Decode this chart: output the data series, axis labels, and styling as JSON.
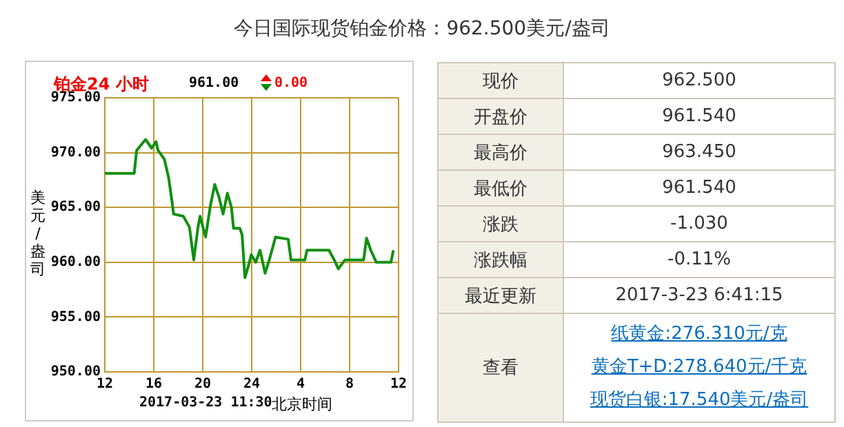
{
  "chart_data": [
    {
      "type": "line",
      "title": "今日国际现货铂金价格：962.500美元/盎司",
      "subtitle": "铂金24 小时",
      "xlabel": "北京时间",
      "ylabel": "美元/盎司",
      "annotations": [
        "961.00",
        "0.00",
        "2017-03-23 11:30"
      ],
      "x": [
        "2017-03-22T12:00",
        "2017-03-22T14:24",
        "2017-03-22T14:36",
        "2017-03-22T15:20",
        "2017-03-22T15:50",
        "2017-03-22T16:11",
        "2017-03-22T16:21",
        "2017-03-22T16:52",
        "2017-03-22T17:13",
        "2017-03-22T17:29",
        "2017-03-22T17:37",
        "2017-03-22T18:25",
        "2017-03-22T18:55",
        "2017-03-22T19:16",
        "2017-03-22T19:37",
        "2017-03-22T19:47",
        "2017-03-22T20:14",
        "2017-03-22T20:38",
        "2017-03-22T20:59",
        "2017-03-22T21:19",
        "2017-03-22T21:40",
        "2017-03-22T22:01",
        "2017-03-22T22:21",
        "2017-03-22T22:31",
        "2017-03-22T23:02",
        "2017-03-22T23:13",
        "2017-03-22T23:27",
        "2017-03-22T23:43",
        "2017-03-22T23:58",
        "2017-03-23T00:20",
        "2017-03-23T00:41",
        "2017-03-23T01:06",
        "2017-03-23T01:26",
        "2017-03-23T01:57",
        "2017-03-23T02:59",
        "2017-03-23T03:13",
        "2017-03-23T04:21",
        "2017-03-23T04:31",
        "2017-03-23T06:19",
        "2017-03-23T06:45",
        "2017-03-23T07:05",
        "2017-03-23T07:37",
        "2017-03-23T09:09",
        "2017-03-23T09:23",
        "2017-03-23T09:44",
        "2017-03-23T10:11",
        "2017-03-23T11:23",
        "2017-03-23T11:35"
      ],
      "series": [
        {
          "color": "#109010",
          "values": [
            968.1,
            968.1,
            970.2,
            971.2,
            970.4,
            971.0,
            970.2,
            969.4,
            967.7,
            965.6,
            964.4,
            964.2,
            963.2,
            960.2,
            963.2,
            964.2,
            962.3,
            965.2,
            967.1,
            966.0,
            964.4,
            966.3,
            965.0,
            963.1,
            963.1,
            962.5,
            958.6,
            959.6,
            960.7,
            960.0,
            961.1,
            959.0,
            960.2,
            962.3,
            962.1,
            960.2,
            960.2,
            961.1,
            961.1,
            960.2,
            959.4,
            960.2,
            960.2,
            962.2,
            961.1,
            960.0,
            960.0,
            961.1
          ]
        }
      ],
      "xlim": [
        "2017-03-22T12:00",
        "2017-03-23T12:00"
      ],
      "xticks": [
        {
          "value": "2017-03-22T12:00",
          "label": "12"
        },
        {
          "value": "2017-03-22T16:00",
          "label": "16"
        },
        {
          "value": "2017-03-22T20:00",
          "label": "20"
        },
        {
          "value": "2017-03-23T00:00",
          "label": "24"
        },
        {
          "value": "2017-03-23T04:00",
          "label": "4"
        },
        {
          "value": "2017-03-23T08:00",
          "label": "8"
        },
        {
          "value": "2017-03-23T12:00",
          "label": "12"
        }
      ],
      "ylim": [
        950,
        975
      ],
      "yticks": [
        {
          "value": 950,
          "label": "950.00"
        },
        {
          "value": 955,
          "label": "955.00"
        },
        {
          "value": 960,
          "label": "960.00"
        },
        {
          "value": 965,
          "label": "965.00"
        },
        {
          "value": 970,
          "label": "970.00"
        },
        {
          "value": 975,
          "label": "975.00"
        }
      ],
      "grid": true,
      "legend": false,
      "marker": "none",
      "line_style": "solid"
    },
    {
      "type": "other",
      "categories": [
        "现价",
        "开盘价",
        "最高价",
        "最低价",
        "涨跌",
        "涨跌幅",
        "最近更新",
        "查看"
      ],
      "value_labels": [
        "962.500",
        "961.540",
        "963.450",
        "961.540",
        "-1.030",
        "-0.11%",
        "2017-3-23 6:41:15",
        null
      ],
      "annotations": [
        "纸黄金:276.310元/克",
        "黄金T+D:278.640元/千克",
        "现货白银:17.540美元/盎司"
      ]
    }
  ]
}
